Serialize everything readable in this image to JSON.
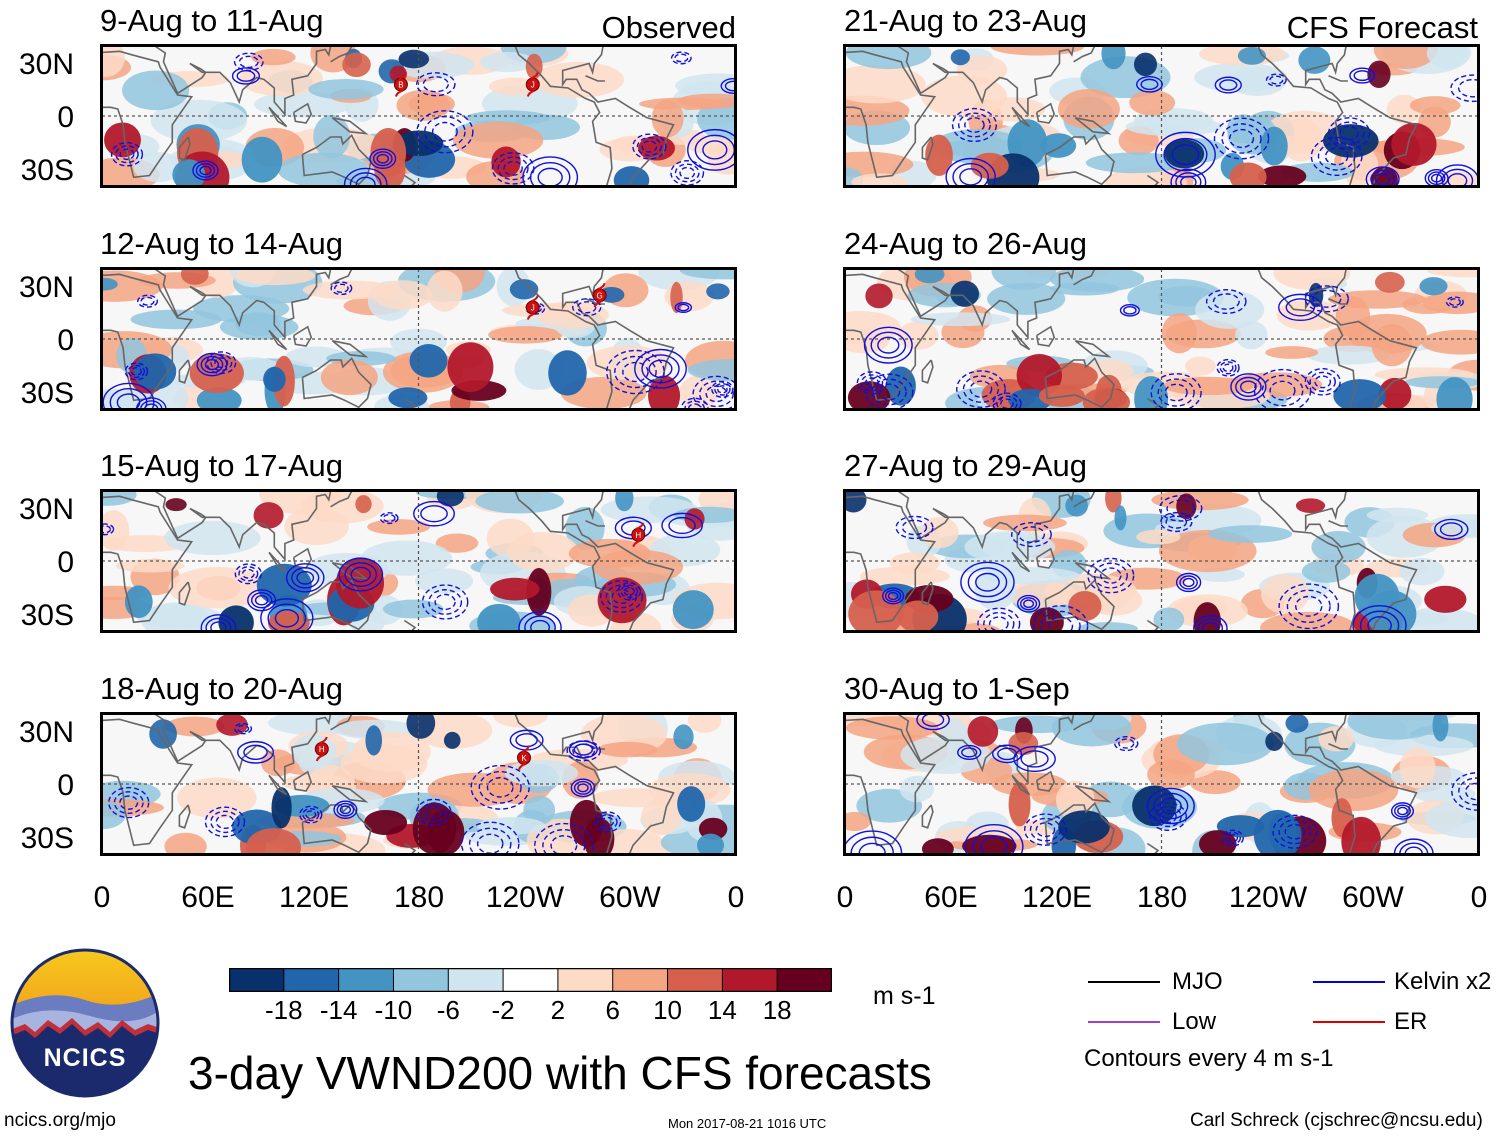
{
  "left_column": {
    "tag": "Observed",
    "panels": [
      {
        "title": "9-Aug to 11-Aug",
        "storms": [
          "B",
          "J"
        ]
      },
      {
        "title": "12-Aug to 14-Aug",
        "storms": [
          "J",
          "G"
        ]
      },
      {
        "title": "15-Aug to 17-Aug",
        "storms": [
          "H"
        ]
      },
      {
        "title": "18-Aug to 20-Aug",
        "storms": [
          "H",
          "K"
        ]
      }
    ]
  },
  "right_column": {
    "tag": "CFS Forecast",
    "panels": [
      {
        "title": "21-Aug to 23-Aug"
      },
      {
        "title": "24-Aug to 26-Aug"
      },
      {
        "title": "27-Aug to 29-Aug"
      },
      {
        "title": "30-Aug to 1-Sep"
      }
    ]
  },
  "lat_labels": [
    "30N",
    "0",
    "30S"
  ],
  "lon_labels": [
    "0",
    "60E",
    "120E",
    "180",
    "120W",
    "60W",
    "0"
  ],
  "colorbar": {
    "units": "m s-1",
    "tick_labels": [
      "-18",
      "-14",
      "-10",
      "-6",
      "-2",
      "2",
      "6",
      "10",
      "14",
      "18"
    ],
    "colors": [
      "#08306b",
      "#2166ac",
      "#4393c3",
      "#92c5de",
      "#d1e5f0",
      "#ffffff",
      "#fddbc7",
      "#f4a582",
      "#d6604d",
      "#b2182b",
      "#67001f"
    ]
  },
  "legend": {
    "items": [
      {
        "label": "MJO",
        "color": "#000000"
      },
      {
        "label": "Kelvin x2",
        "color": "#0000dd"
      },
      {
        "label": "Low",
        "color": "#a040d0"
      },
      {
        "label": "ER",
        "color": "#dd0000"
      }
    ],
    "note": "Contours every 4 m s-1"
  },
  "logo": {
    "text": "NCICS"
  },
  "title": "3-day VWND200 with CFS forecasts",
  "footer": {
    "left": "ncics.org/mjo",
    "center": "Mon 2017-08-21 1016 UTC",
    "right": "Carl Schreck (cjschrec@ncsu.edu)"
  }
}
